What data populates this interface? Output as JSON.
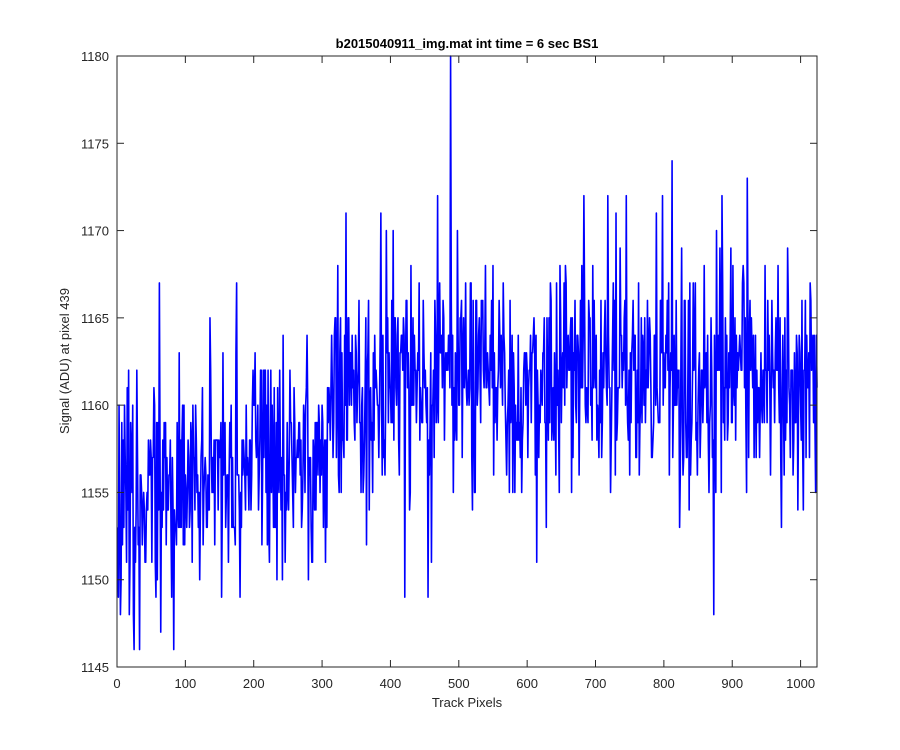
{
  "chart_data": {
    "type": "line",
    "title": "b2015040911_img.mat int time = 6 sec   BS1",
    "xlabel": "Track Pixels",
    "ylabel": "Signal (ADU) at pixel 439",
    "xlim": [
      0,
      1024
    ],
    "ylim": [
      1145,
      1180
    ],
    "xticks": [
      0,
      100,
      200,
      300,
      400,
      500,
      600,
      700,
      800,
      900,
      1000
    ],
    "yticks": [
      1145,
      1150,
      1155,
      1160,
      1165,
      1170,
      1175,
      1180
    ],
    "grid": false,
    "line_color": "#0000ff",
    "series": [
      {
        "description": "noisy signal, one value per track pixel (x = 1..1024); trend rises from ~1155 near x=0-300 to ~1162 beyond x=330",
        "segments": [
          {
            "x0": 1,
            "x1": 100,
            "mean": 1155.5,
            "std": 3.6
          },
          {
            "x0": 100,
            "x1": 300,
            "mean": 1156.5,
            "std": 3.0
          },
          {
            "x0": 300,
            "x1": 340,
            "mean": 1160.5,
            "std": 3.2
          },
          {
            "x0": 340,
            "x1": 1024,
            "mean": 1161.8,
            "std": 3.3
          }
        ],
        "spikes": [
          {
            "x": 2,
            "y": 1149
          },
          {
            "x": 5,
            "y": 1148
          },
          {
            "x": 8,
            "y": 1152
          },
          {
            "x": 17,
            "y": 1162
          },
          {
            "x": 25,
            "y": 1146
          },
          {
            "x": 33,
            "y": 1146
          },
          {
            "x": 62,
            "y": 1167
          },
          {
            "x": 80,
            "y": 1149
          },
          {
            "x": 136,
            "y": 1165
          },
          {
            "x": 175,
            "y": 1167
          },
          {
            "x": 242,
            "y": 1150
          },
          {
            "x": 335,
            "y": 1171
          },
          {
            "x": 365,
            "y": 1152
          },
          {
            "x": 386,
            "y": 1171
          },
          {
            "x": 421,
            "y": 1149
          },
          {
            "x": 455,
            "y": 1149
          },
          {
            "x": 469,
            "y": 1172
          },
          {
            "x": 488,
            "y": 1180
          },
          {
            "x": 614,
            "y": 1151
          },
          {
            "x": 718,
            "y": 1172
          },
          {
            "x": 745,
            "y": 1172
          },
          {
            "x": 798,
            "y": 1172
          },
          {
            "x": 812,
            "y": 1174
          },
          {
            "x": 873,
            "y": 1148
          },
          {
            "x": 885,
            "y": 1172
          },
          {
            "x": 922,
            "y": 1173
          },
          {
            "x": 1008,
            "y": 1157
          },
          {
            "x": 1022,
            "y": 1155
          }
        ]
      }
    ]
  }
}
